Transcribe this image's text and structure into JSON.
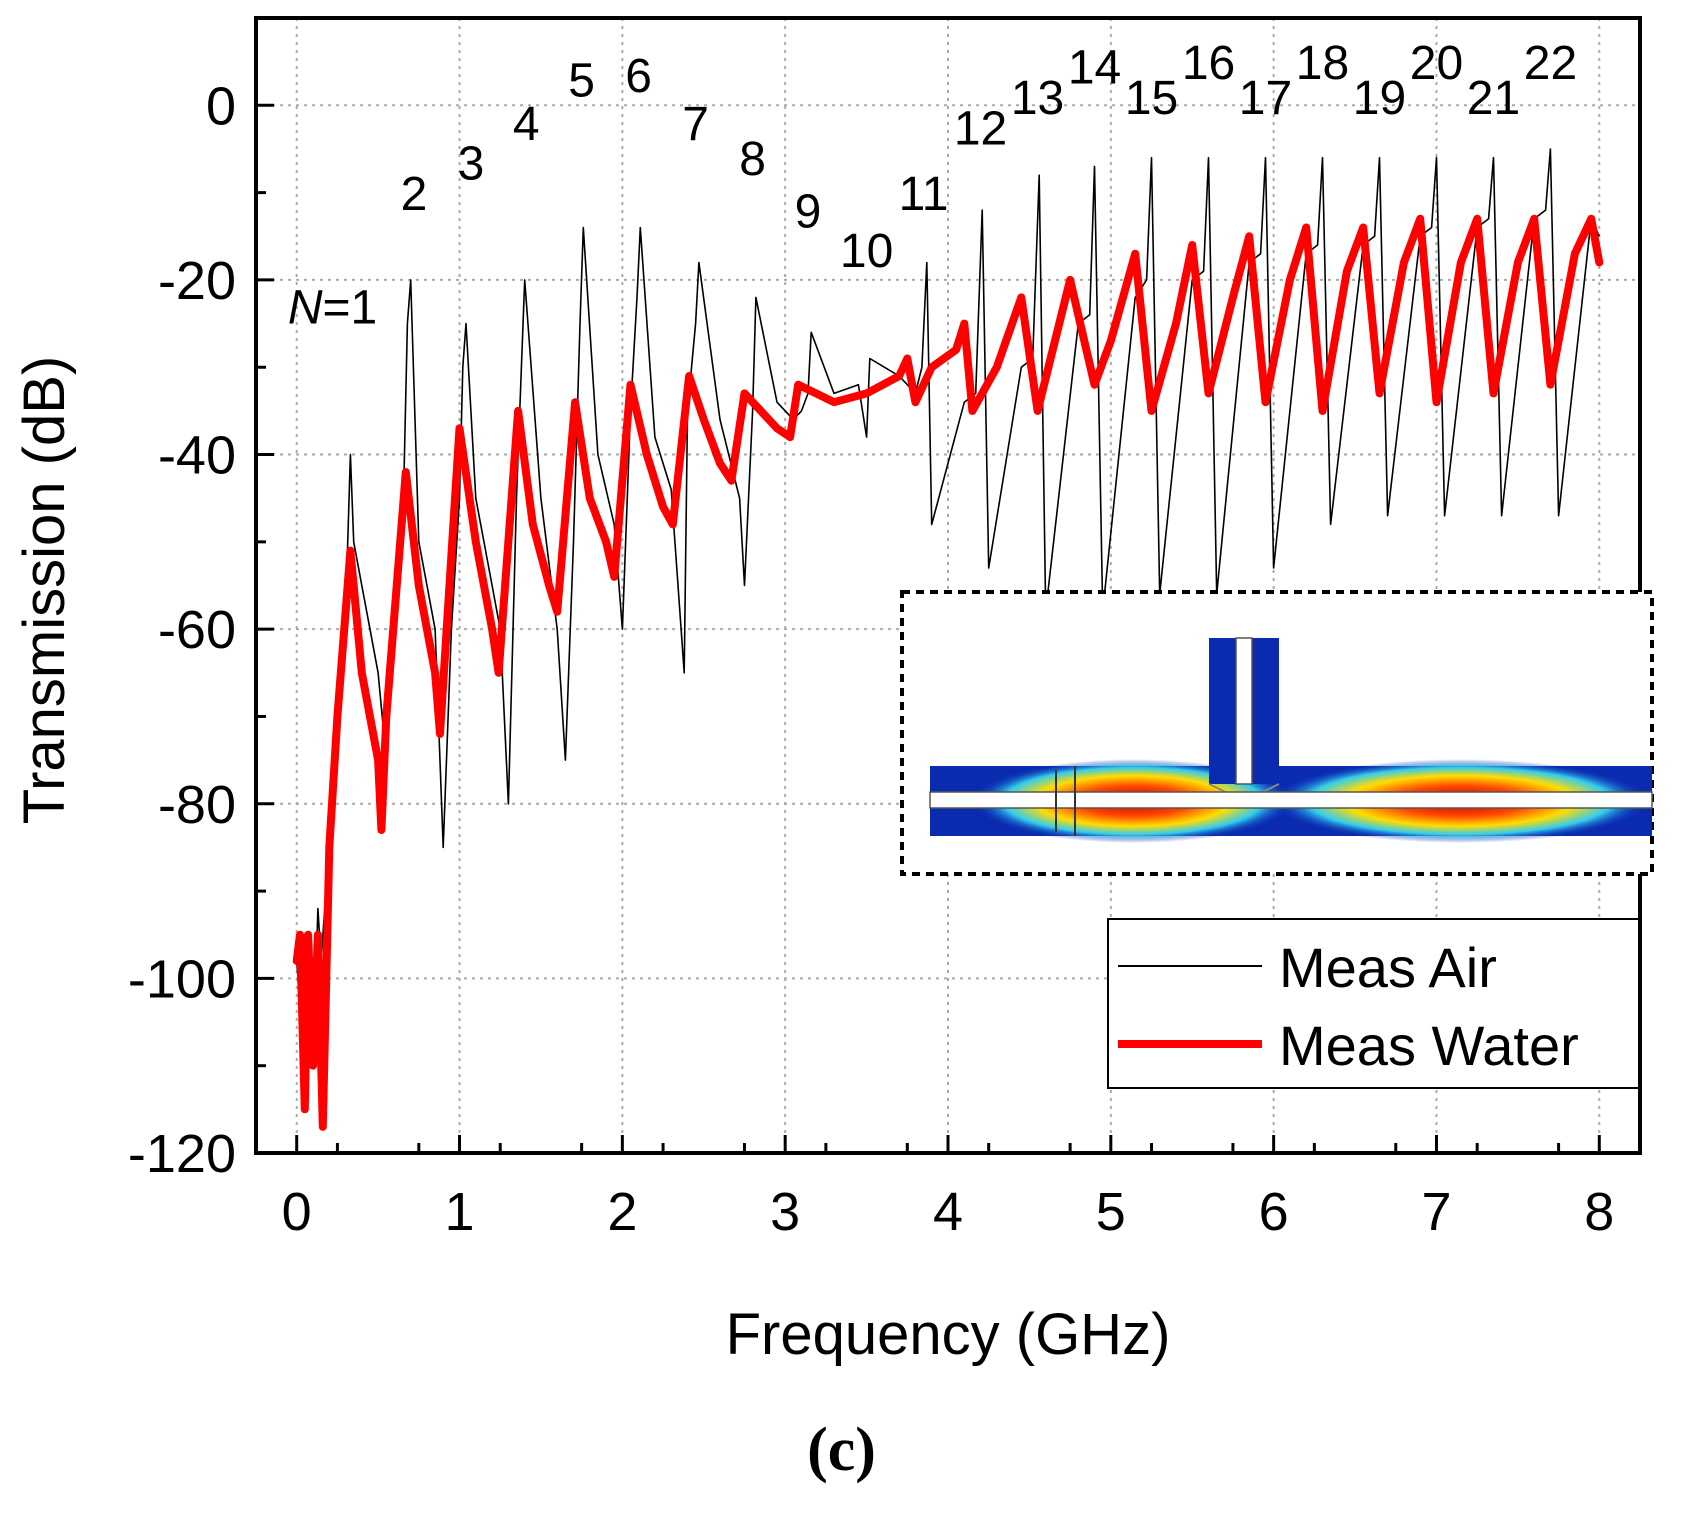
{
  "chart_data": {
    "type": "line",
    "xlabel": "Frequency (GHz)",
    "ylabel": "Transmission (dB)",
    "xlim": [
      -0.25,
      8.25
    ],
    "ylim": [
      -120,
      10
    ],
    "x_ticks": [
      0,
      1,
      2,
      3,
      4,
      5,
      6,
      7,
      8
    ],
    "y_ticks": [
      0,
      -20,
      -40,
      -60,
      -80,
      -100,
      -120
    ],
    "grid": true,
    "legend": {
      "placement": "bottom-right",
      "entries": [
        "Meas Air",
        "Meas Water"
      ]
    },
    "series": [
      {
        "name": "Meas Air",
        "color": "#000000",
        "description": "resonant comb",
        "x": [
          0.0,
          0.02,
          0.05,
          0.1,
          0.13,
          0.15,
          0.18,
          0.22,
          0.26,
          0.29,
          0.3,
          0.33,
          0.35,
          0.4,
          0.45,
          0.5,
          0.55,
          0.6,
          0.65,
          0.68,
          0.7,
          0.75,
          0.8,
          0.85,
          0.9,
          0.95,
          1.0,
          1.02,
          1.04,
          1.1,
          1.2,
          1.25,
          1.3,
          1.35,
          1.38,
          1.4,
          1.5,
          1.6,
          1.65,
          1.7,
          1.74,
          1.76,
          1.85,
          1.95,
          2.0,
          2.05,
          2.09,
          2.11,
          2.2,
          2.3,
          2.38,
          2.4,
          2.45,
          2.47,
          2.6,
          2.72,
          2.75,
          2.8,
          2.82,
          2.95,
          3.05,
          3.1,
          3.14,
          3.16,
          3.3,
          3.45,
          3.5,
          3.52,
          3.7,
          3.8,
          3.84,
          3.87,
          3.9,
          4.1,
          4.17,
          4.21,
          4.25,
          4.45,
          4.52,
          4.56,
          4.6,
          4.8,
          4.87,
          4.9,
          4.95,
          5.15,
          5.22,
          5.25,
          5.3,
          5.5,
          5.57,
          5.6,
          5.65,
          5.85,
          5.92,
          5.95,
          6.0,
          6.2,
          6.27,
          6.3,
          6.35,
          6.55,
          6.62,
          6.65,
          6.7,
          6.9,
          6.97,
          7.0,
          7.05,
          7.25,
          7.32,
          7.35,
          7.4,
          7.6,
          7.67,
          7.7,
          7.75,
          7.95,
          8.0
        ],
        "values": [
          -98,
          -103,
          -95,
          -110,
          -92,
          -98,
          -90,
          -80,
          -68,
          -60,
          -58,
          -40,
          -50,
          -55,
          -60,
          -65,
          -75,
          -60,
          -50,
          -25,
          -20,
          -50,
          -55,
          -60,
          -85,
          -60,
          -45,
          -30,
          -25,
          -45,
          -55,
          -60,
          -80,
          -45,
          -30,
          -20,
          -45,
          -60,
          -75,
          -50,
          -25,
          -14,
          -40,
          -48,
          -60,
          -35,
          -22,
          -14,
          -38,
          -44,
          -65,
          -35,
          -25,
          -18,
          -36,
          -45,
          -55,
          -35,
          -22,
          -34,
          -36,
          -35,
          -33,
          -26,
          -33,
          -32,
          -38,
          -29,
          -31,
          -33,
          -30,
          -18,
          -48,
          -34,
          -33,
          -12,
          -53,
          -30,
          -29,
          -8,
          -58,
          -25,
          -24,
          -7,
          -58,
          -22,
          -20,
          -6,
          -56,
          -20,
          -19,
          -6,
          -56,
          -18,
          -17,
          -6,
          -53,
          -17,
          -16,
          -6,
          -48,
          -16,
          -15,
          -6,
          -47,
          -15,
          -14,
          -6,
          -47,
          -14,
          -13,
          -6,
          -47,
          -13,
          -12,
          -5,
          -47,
          -13,
          -15
        ]
      },
      {
        "name": "Meas Water",
        "color": "#ff0000",
        "description": "damped resonances",
        "x": [
          0.0,
          0.02,
          0.05,
          0.07,
          0.1,
          0.13,
          0.16,
          0.2,
          0.25,
          0.33,
          0.4,
          0.5,
          0.52,
          0.55,
          0.67,
          0.75,
          0.85,
          0.88,
          1.0,
          1.1,
          1.2,
          1.24,
          1.36,
          1.45,
          1.55,
          1.6,
          1.71,
          1.8,
          1.9,
          1.95,
          2.05,
          2.15,
          2.25,
          2.31,
          2.41,
          2.5,
          2.6,
          2.67,
          2.75,
          2.85,
          2.95,
          3.03,
          3.08,
          3.3,
          3.5,
          3.7,
          3.75,
          3.8,
          3.9,
          4.05,
          4.1,
          4.15,
          4.3,
          4.45,
          4.55,
          4.75,
          4.9,
          5.0,
          5.15,
          5.25,
          5.4,
          5.5,
          5.6,
          5.75,
          5.85,
          5.95,
          6.1,
          6.2,
          6.3,
          6.45,
          6.55,
          6.65,
          6.8,
          6.9,
          7.0,
          7.15,
          7.25,
          7.35,
          7.5,
          7.6,
          7.7,
          7.85,
          7.95,
          8.0
        ],
        "values": [
          -98,
          -95,
          -115,
          -95,
          -110,
          -95,
          -117,
          -85,
          -70,
          -51,
          -65,
          -75,
          -83,
          -70,
          -42,
          -55,
          -65,
          -72,
          -37,
          -50,
          -60,
          -65,
          -35,
          -48,
          -55,
          -58,
          -34,
          -45,
          -50,
          -54,
          -32,
          -40,
          -46,
          -48,
          -31,
          -36,
          -41,
          -43,
          -33,
          -35,
          -37,
          -38,
          -32,
          -34,
          -33,
          -31,
          -29,
          -34,
          -30,
          -28,
          -25,
          -35,
          -30,
          -22,
          -35,
          -20,
          -32,
          -27,
          -17,
          -35,
          -25,
          -16,
          -33,
          -22,
          -15,
          -34,
          -20,
          -14,
          -35,
          -19,
          -14,
          -33,
          -18,
          -13,
          -34,
          -18,
          -13,
          -33,
          -18,
          -13,
          -32,
          -17,
          -13,
          -18
        ]
      }
    ],
    "annotations": [
      {
        "label": "N",
        "suffix": "=1",
        "x": 0.22,
        "y": -25,
        "italic_prefix": true
      },
      {
        "label": "2",
        "x": 0.72,
        "y": -12
      },
      {
        "label": "3",
        "x": 1.07,
        "y": -8.5
      },
      {
        "label": "4",
        "x": 1.41,
        "y": -4
      },
      {
        "label": "5",
        "x": 1.75,
        "y": 1
      },
      {
        "label": "6",
        "x": 2.1,
        "y": 1.5
      },
      {
        "label": "7",
        "x": 2.45,
        "y": -4
      },
      {
        "label": "8",
        "x": 2.8,
        "y": -8
      },
      {
        "label": "9",
        "x": 3.14,
        "y": -14
      },
      {
        "label": "10",
        "x": 3.5,
        "y": -18.5
      },
      {
        "label": "11",
        "x": 3.85,
        "y": -12
      },
      {
        "label": "12",
        "x": 4.2,
        "y": -4.5
      },
      {
        "label": "13",
        "x": 4.55,
        "y": -1
      },
      {
        "label": "14",
        "x": 4.9,
        "y": 2.5
      },
      {
        "label": "15",
        "x": 5.25,
        "y": -1
      },
      {
        "label": "16",
        "x": 5.6,
        "y": 3
      },
      {
        "label": "17",
        "x": 5.95,
        "y": -1
      },
      {
        "label": "18",
        "x": 6.3,
        "y": 3
      },
      {
        "label": "19",
        "x": 6.65,
        "y": -1
      },
      {
        "label": "20",
        "x": 7.0,
        "y": 3
      },
      {
        "label": "21",
        "x": 7.35,
        "y": -1
      },
      {
        "label": "22",
        "x": 7.7,
        "y": 3
      }
    ],
    "caption": "(c)"
  }
}
